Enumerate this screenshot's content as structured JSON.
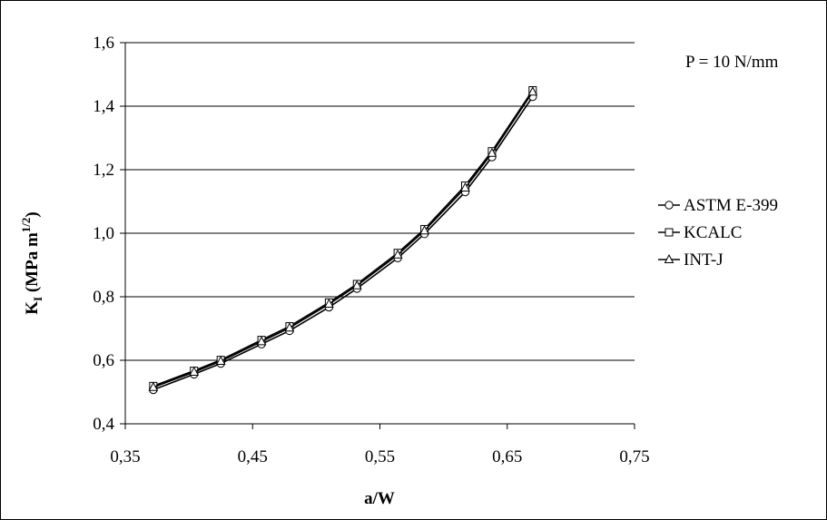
{
  "chart_data": {
    "type": "line",
    "annotation": "P = 10 N/mm",
    "xlabel": "a/W",
    "ylabel_main": "K",
    "ylabel_sub": "I",
    "ylabel_unit": " (MPa m",
    "ylabel_sup": "1/2",
    "ylabel_close": ")",
    "xlim": [
      0.35,
      0.75
    ],
    "ylim": [
      0.4,
      1.6
    ],
    "xticks": [
      0.35,
      0.45,
      0.55,
      0.65,
      0.75
    ],
    "xtick_labels": [
      "0,35",
      "0,45",
      "0,55",
      "0,65",
      "0,75"
    ],
    "yticks": [
      0.4,
      0.6,
      0.8,
      1.0,
      1.2,
      1.4,
      1.6
    ],
    "ytick_labels": [
      "0,4",
      "0,6",
      "0,8",
      "1,0",
      "1,2",
      "1,4",
      "1,6"
    ],
    "grid": "horizontal",
    "legend_position": "right",
    "x": [
      0.372,
      0.404,
      0.425,
      0.457,
      0.479,
      0.51,
      0.532,
      0.564,
      0.585,
      0.617,
      0.638,
      0.67
    ],
    "series": [
      {
        "name": "ASTM E-399",
        "marker": "circle",
        "values": [
          0.507,
          0.556,
          0.59,
          0.651,
          0.693,
          0.767,
          0.826,
          0.922,
          0.998,
          1.13,
          1.24,
          1.43
        ]
      },
      {
        "name": "KCALC",
        "marker": "square",
        "values": [
          0.519,
          0.567,
          0.601,
          0.664,
          0.707,
          0.782,
          0.84,
          0.938,
          1.013,
          1.15,
          1.258,
          1.45
        ]
      },
      {
        "name": "INT-J",
        "marker": "triangle",
        "values": [
          0.515,
          0.563,
          0.597,
          0.659,
          0.702,
          0.777,
          0.835,
          0.932,
          1.008,
          1.143,
          1.252,
          1.445
        ]
      }
    ]
  }
}
